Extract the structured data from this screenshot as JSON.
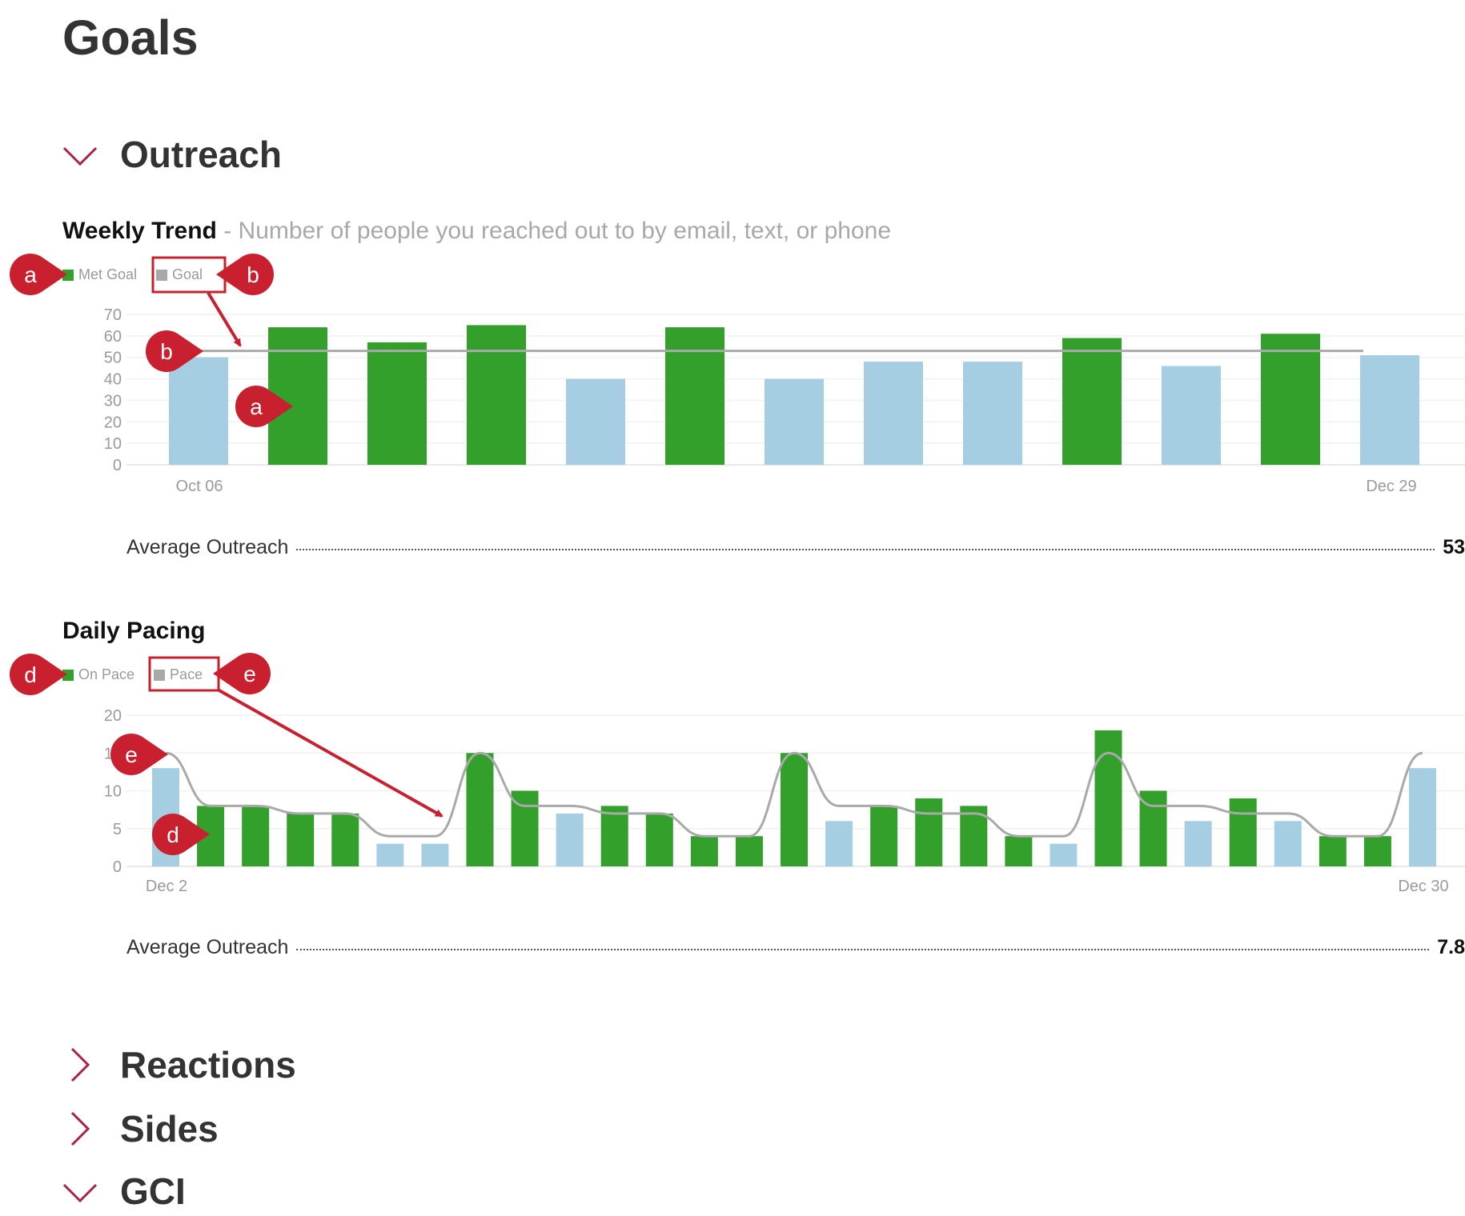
{
  "page": {
    "title": "Goals"
  },
  "sections": {
    "outreach": {
      "title": "Outreach",
      "expanded": true
    },
    "reactions": {
      "title": "Reactions",
      "expanded": false
    },
    "sides": {
      "title": "Sides",
      "expanded": false
    },
    "gci": {
      "title": "GCI",
      "expanded": true
    }
  },
  "weekly": {
    "title": "Weekly Trend",
    "subtitle": " - Number of people you reached out to by email, text, or phone",
    "legend": {
      "met": "Met Goal",
      "goal": "Goal"
    },
    "stat_label": "Average Outreach",
    "stat_value": "53"
  },
  "daily": {
    "title": "Daily Pacing",
    "legend": {
      "met": "On Pace",
      "goal": "Pace"
    },
    "stat_label": "Average Outreach",
    "stat_value": "7.8"
  },
  "colors": {
    "met": "#33a02c",
    "not_met": "#a6cee3",
    "goal_line": "#a9a9a9",
    "annotation": "#c8202f",
    "chevron": "#a8234a"
  },
  "icons": {
    "collapse": "chevron-down-icon",
    "expand": "chevron-right-icon"
  },
  "annotations": {
    "a": "a",
    "b": "b",
    "d": "d",
    "e": "e"
  },
  "chart_data": [
    {
      "type": "bar",
      "title": "Weekly Trend",
      "x_tick_labels": [
        "Oct 06",
        "Dec 29"
      ],
      "values": [
        50,
        64,
        57,
        65,
        40,
        64,
        40,
        48,
        48,
        59,
        46,
        61,
        51
      ],
      "met_goal": [
        false,
        true,
        true,
        true,
        false,
        true,
        false,
        false,
        false,
        true,
        false,
        true,
        false
      ],
      "goal": 53,
      "ylim": [
        0,
        70
      ],
      "yticks": [
        0,
        10,
        20,
        30,
        40,
        50,
        60,
        70
      ],
      "legend": [
        "Met Goal",
        "Goal"
      ],
      "legend_position": "top-left",
      "grid": true
    },
    {
      "type": "bar",
      "title": "Daily Pacing",
      "x_tick_labels": [
        "Dec 2",
        "Dec 30"
      ],
      "values": [
        13,
        8,
        8,
        7,
        7,
        3,
        3,
        15,
        10,
        7,
        8,
        7,
        4,
        4,
        15,
        6,
        8,
        9,
        8,
        4,
        3,
        18,
        10,
        6,
        9,
        6,
        4,
        4,
        13
      ],
      "on_pace": [
        false,
        true,
        true,
        true,
        true,
        false,
        false,
        true,
        true,
        false,
        true,
        true,
        true,
        true,
        true,
        false,
        true,
        true,
        true,
        true,
        false,
        true,
        true,
        false,
        true,
        false,
        true,
        true,
        false
      ],
      "pace": [
        15,
        8,
        8,
        7,
        7,
        4,
        4,
        15,
        8,
        8,
        7,
        7,
        4,
        4,
        15,
        8,
        8,
        7,
        7,
        4,
        4,
        15,
        8,
        8,
        7,
        7,
        4,
        4,
        15
      ],
      "ylim": [
        0,
        20
      ],
      "yticks": [
        0,
        5,
        10,
        15,
        20
      ],
      "legend": [
        "On Pace",
        "Pace"
      ],
      "legend_position": "top-left",
      "grid": true
    }
  ]
}
